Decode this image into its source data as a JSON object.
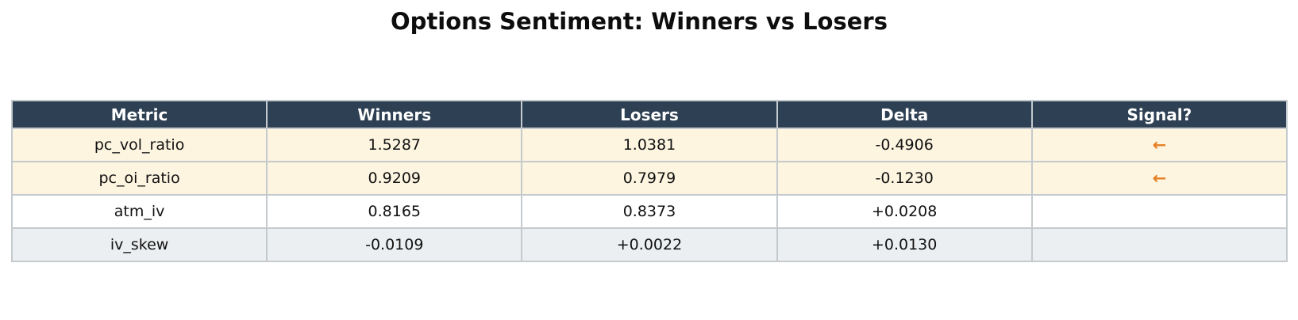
{
  "title": "Options Sentiment: Winners vs Losers",
  "chart_data": {
    "type": "table",
    "title": "Options Sentiment: Winners vs Losers",
    "columns": [
      "Metric",
      "Winners",
      "Losers",
      "Delta",
      "Signal?"
    ],
    "rows": [
      [
        "pc_vol_ratio",
        "1.5287",
        "1.0381",
        "-0.4906",
        "←"
      ],
      [
        "pc_oi_ratio",
        "0.9209",
        "0.7979",
        "-0.1230",
        "←"
      ],
      [
        "atm_iv",
        "0.8165",
        "0.8373",
        "+0.0208",
        ""
      ],
      [
        "iv_skew",
        "-0.0109",
        "+0.0022",
        "+0.0130",
        ""
      ]
    ],
    "highlighted_rows": [
      0,
      1
    ],
    "legend_position": "none",
    "grid": false
  },
  "icons": {
    "signal_arrow": "left-arrow-icon",
    "signal_arrow_glyph": "←"
  },
  "colors": {
    "header_bg": "#2e4053",
    "header_text": "#ffffff",
    "signal_row_bg": "#fdf5e0",
    "white_row_bg": "#ffffff",
    "gray_row_bg": "#eceff1",
    "arrow_orange": "#e67e22",
    "border_gray": "#c4cacd",
    "title_text": "#0d0d0d",
    "cell_text": "#111111",
    "page_bg": "#ffffff"
  }
}
